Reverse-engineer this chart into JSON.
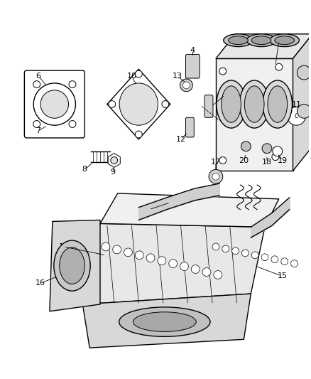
{
  "background_color": "#ffffff",
  "line_color": "#000000",
  "label_color": "#000000",
  "figsize": [
    4.38,
    5.33
  ],
  "dpi": 100
}
